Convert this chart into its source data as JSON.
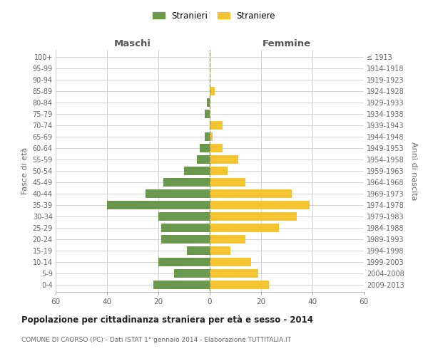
{
  "age_groups": [
    "0-4",
    "5-9",
    "10-14",
    "15-19",
    "20-24",
    "25-29",
    "30-34",
    "35-39",
    "40-44",
    "45-49",
    "50-54",
    "55-59",
    "60-64",
    "65-69",
    "70-74",
    "75-79",
    "80-84",
    "85-89",
    "90-94",
    "95-99",
    "100+"
  ],
  "birth_years": [
    "2009-2013",
    "2004-2008",
    "1999-2003",
    "1994-1998",
    "1989-1993",
    "1984-1988",
    "1979-1983",
    "1974-1978",
    "1969-1973",
    "1964-1968",
    "1959-1963",
    "1954-1958",
    "1949-1953",
    "1944-1948",
    "1939-1943",
    "1934-1938",
    "1929-1933",
    "1924-1928",
    "1919-1923",
    "1914-1918",
    "≤ 1913"
  ],
  "maschi": [
    22,
    14,
    20,
    9,
    19,
    19,
    20,
    40,
    25,
    18,
    10,
    5,
    4,
    2,
    0,
    2,
    1,
    0,
    0,
    0,
    0
  ],
  "femmine": [
    23,
    19,
    16,
    8,
    14,
    27,
    34,
    39,
    32,
    14,
    7,
    11,
    5,
    1,
    5,
    0,
    0,
    2,
    0,
    0,
    0
  ],
  "maschi_color": "#6a994e",
  "femmine_color": "#f4c430",
  "background_color": "#ffffff",
  "grid_color": "#cccccc",
  "center_line_color": "#999966",
  "title": "Popolazione per cittadinanza straniera per età e sesso - 2014",
  "subtitle": "COMUNE DI CAORSO (PC) - Dati ISTAT 1° gennaio 2014 - Elaborazione TUTTITALIA.IT",
  "xlabel_left": "Maschi",
  "xlabel_right": "Femmine",
  "ylabel_left": "Fasce di età",
  "ylabel_right": "Anni di nascita",
  "legend_maschi": "Stranieri",
  "legend_femmine": "Straniere",
  "xlim": 60,
  "bar_height": 0.75
}
